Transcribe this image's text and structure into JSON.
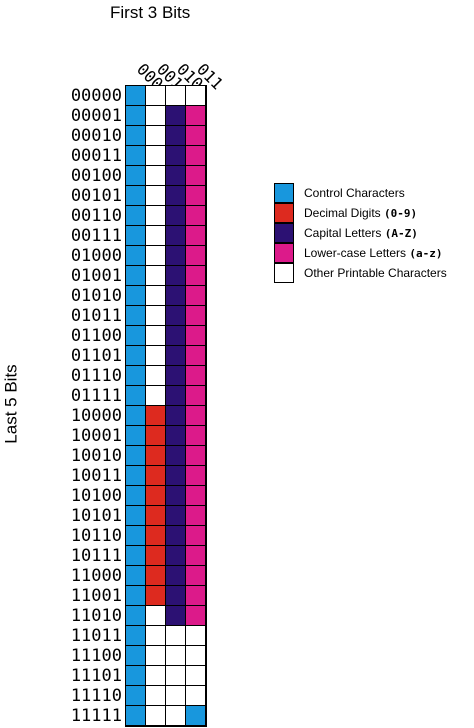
{
  "labels": {
    "column_axis": "First 3 Bits",
    "row_axis": "Last 5 Bits"
  },
  "column_labels": [
    "000",
    "001",
    "010",
    "011"
  ],
  "row_labels": [
    "00000",
    "00001",
    "00010",
    "00011",
    "00100",
    "00101",
    "00110",
    "00111",
    "01000",
    "01001",
    "01010",
    "01011",
    "01100",
    "01101",
    "01110",
    "01111",
    "10000",
    "10001",
    "10010",
    "10011",
    "10100",
    "10101",
    "10110",
    "10111",
    "11000",
    "11001",
    "11010",
    "11011",
    "11100",
    "11101",
    "11110",
    "11111"
  ],
  "colors": {
    "control": "#1897dd",
    "digit": "#dd2a1f",
    "capital": "#2c1173",
    "lower": "#dc1a8a",
    "other": "#ffffff"
  },
  "legend": [
    {
      "key": "control",
      "text": "Control Characters",
      "range": ""
    },
    {
      "key": "digit",
      "text": "Decimal Digits ",
      "range": "(0-9)"
    },
    {
      "key": "capital",
      "text": "Capital Letters ",
      "range": "(A-Z)"
    },
    {
      "key": "lower",
      "text": "Lower-case Letters ",
      "range": "(a-z)"
    },
    {
      "key": "other",
      "text": "Other Printable Characters",
      "range": ""
    }
  ],
  "cells": [
    [
      "control",
      "other",
      "other",
      "other"
    ],
    [
      "control",
      "other",
      "capital",
      "lower"
    ],
    [
      "control",
      "other",
      "capital",
      "lower"
    ],
    [
      "control",
      "other",
      "capital",
      "lower"
    ],
    [
      "control",
      "other",
      "capital",
      "lower"
    ],
    [
      "control",
      "other",
      "capital",
      "lower"
    ],
    [
      "control",
      "other",
      "capital",
      "lower"
    ],
    [
      "control",
      "other",
      "capital",
      "lower"
    ],
    [
      "control",
      "other",
      "capital",
      "lower"
    ],
    [
      "control",
      "other",
      "capital",
      "lower"
    ],
    [
      "control",
      "other",
      "capital",
      "lower"
    ],
    [
      "control",
      "other",
      "capital",
      "lower"
    ],
    [
      "control",
      "other",
      "capital",
      "lower"
    ],
    [
      "control",
      "other",
      "capital",
      "lower"
    ],
    [
      "control",
      "other",
      "capital",
      "lower"
    ],
    [
      "control",
      "other",
      "capital",
      "lower"
    ],
    [
      "control",
      "digit",
      "capital",
      "lower"
    ],
    [
      "control",
      "digit",
      "capital",
      "lower"
    ],
    [
      "control",
      "digit",
      "capital",
      "lower"
    ],
    [
      "control",
      "digit",
      "capital",
      "lower"
    ],
    [
      "control",
      "digit",
      "capital",
      "lower"
    ],
    [
      "control",
      "digit",
      "capital",
      "lower"
    ],
    [
      "control",
      "digit",
      "capital",
      "lower"
    ],
    [
      "control",
      "digit",
      "capital",
      "lower"
    ],
    [
      "control",
      "digit",
      "capital",
      "lower"
    ],
    [
      "control",
      "digit",
      "capital",
      "lower"
    ],
    [
      "control",
      "other",
      "capital",
      "lower"
    ],
    [
      "control",
      "other",
      "other",
      "other"
    ],
    [
      "control",
      "other",
      "other",
      "other"
    ],
    [
      "control",
      "other",
      "other",
      "other"
    ],
    [
      "control",
      "other",
      "other",
      "other"
    ],
    [
      "control",
      "other",
      "other",
      "control"
    ]
  ]
}
